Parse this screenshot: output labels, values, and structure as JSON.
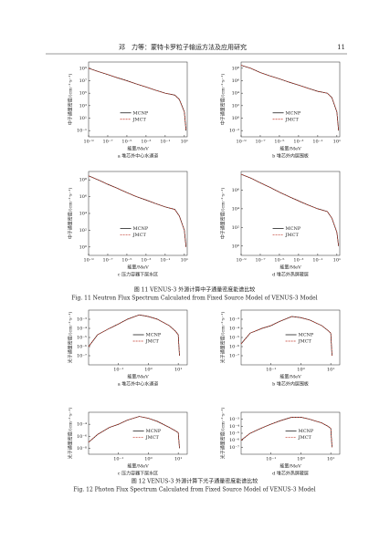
{
  "header": {
    "running_title": "邓　力等：蒙特卡罗粒子输运方法及应用研究",
    "page": "11"
  },
  "figures": [
    {
      "caption_cn": "图 11  VENUS-3 外源计算中子通量密度能谱比较",
      "caption_en": "Fig. 11  Neutron Flux Spectrum Calculated from Fixed Source Model of VENUS-3 Model"
    },
    {
      "caption_cn": "图 12  VENUS-3 外源计算下光子通量密度能谱比较",
      "caption_en": "Fig. 12  Photon Flux Spectrum Calculated from Fixed Source Model of VENUS-3 Model"
    }
  ],
  "chart_data": [
    {
      "type": "line",
      "caption": "a  堆芯外中心水通道",
      "xlabel": "能量/MeV",
      "ylabel": "中子通量密度/(cm⁻²·s⁻¹)",
      "xscale": "log",
      "yscale": "log",
      "legend": "lower center",
      "xlim": [
        1e-09,
        20
      ],
      "ylim": [
        0.01,
        10000000000.0
      ],
      "xticks": [
        {
          "value": 1e-09,
          "label": "10⁻⁹"
        },
        {
          "value": 1e-07,
          "label": "10⁻⁷"
        },
        {
          "value": 1e-05,
          "label": "10⁻⁵"
        },
        {
          "value": 0.001,
          "label": "10⁻³"
        },
        {
          "value": 0.1,
          "label": "10⁻¹"
        },
        {
          "value": 10,
          "label": "10¹"
        }
      ],
      "yticks": [
        {
          "value": 0.1,
          "label": "10⁻¹"
        },
        {
          "value": 10,
          "label": "10¹"
        },
        {
          "value": 1000,
          "label": "10³"
        },
        {
          "value": 100000,
          "label": "10⁵"
        },
        {
          "value": 10000000.0,
          "label": "10⁷"
        },
        {
          "value": 1000000000.0,
          "label": "10⁹"
        }
      ],
      "x": [
        1e-09,
        1e-08,
        1e-07,
        1e-06,
        1e-05,
        0.0001,
        0.001,
        0.01,
        0.1,
        1,
        3,
        10,
        15
      ],
      "series": [
        {
          "name": "MCNP",
          "color": "#000000",
          "values": [
            1000000000.0,
            300000000.0,
            100000000.0,
            30000000.0,
            10000000.0,
            3000000.0,
            1000000.0,
            300000.0,
            100000.0,
            50000.0,
            10000.0,
            100,
            0.1
          ]
        },
        {
          "name": "JMCT",
          "color": "#c0392b",
          "values": [
            1000000000.0,
            300000000.0,
            100000000.0,
            30000000.0,
            10000000.0,
            3000000.0,
            1000000.0,
            300000.0,
            100000.0,
            50000.0,
            10000.0,
            100,
            0.1
          ]
        }
      ]
    },
    {
      "type": "line",
      "caption": "b  堆芯外内层围板",
      "xlabel": "能量/MeV",
      "ylabel": "中子通量密度/(cm⁻²·s⁻¹)",
      "xscale": "log",
      "yscale": "log",
      "legend": "lower center",
      "xlim": [
        1e-09,
        20
      ],
      "ylim": [
        0.001,
        1000000000.0
      ],
      "xticks": [
        {
          "value": 1e-09,
          "label": "10⁻⁹"
        },
        {
          "value": 1e-07,
          "label": "10⁻⁷"
        },
        {
          "value": 1e-05,
          "label": "10⁻⁵"
        },
        {
          "value": 0.001,
          "label": "10⁻³"
        },
        {
          "value": 0.1,
          "label": "10⁻¹"
        },
        {
          "value": 10,
          "label": "10¹"
        }
      ],
      "yticks": [
        {
          "value": 0.01,
          "label": "10⁻²"
        },
        {
          "value": 1,
          "label": "10⁰"
        },
        {
          "value": 100,
          "label": "10²"
        },
        {
          "value": 10000,
          "label": "10⁴"
        },
        {
          "value": 1000000.0,
          "label": "10⁶"
        },
        {
          "value": 100000000.0,
          "label": "10⁸"
        }
      ],
      "x": [
        1e-09,
        1e-08,
        1e-07,
        1e-06,
        1e-05,
        0.0001,
        0.001,
        0.01,
        0.1,
        1,
        3,
        10,
        15
      ],
      "series": [
        {
          "name": "MCNP",
          "color": "#000000",
          "values": [
            300000000.0,
            100000000.0,
            20000000.0,
            6000000.0,
            2000000.0,
            600000.0,
            200000.0,
            60000.0,
            20000.0,
            10000.0,
            2000,
            10,
            0.01
          ]
        },
        {
          "name": "JMCT",
          "color": "#c0392b",
          "values": [
            300000000.0,
            100000000.0,
            20000000.0,
            6000000.0,
            2000000.0,
            600000.0,
            200000.0,
            60000.0,
            20000.0,
            10000.0,
            2000,
            10,
            0.01
          ]
        }
      ]
    },
    {
      "type": "line",
      "caption": "c  压力容器下层水区",
      "xlabel": "能量/MeV",
      "ylabel": "中子通量密度/(cm⁻²·s⁻¹)",
      "xscale": "log",
      "yscale": "log",
      "legend": "lower center",
      "xlim": [
        1e-09,
        20
      ],
      "ylim": [
        0.1,
        1000000000.0
      ],
      "xticks": [
        {
          "value": 1e-09,
          "label": "10⁻⁹"
        },
        {
          "value": 1e-07,
          "label": "10⁻⁷"
        },
        {
          "value": 1e-05,
          "label": "10⁻⁵"
        },
        {
          "value": 0.001,
          "label": "10⁻³"
        },
        {
          "value": 0.1,
          "label": "10⁻¹"
        },
        {
          "value": 10,
          "label": "10¹"
        }
      ],
      "yticks": [
        {
          "value": 1,
          "label": "10⁰"
        },
        {
          "value": 100,
          "label": "10²"
        },
        {
          "value": 10000,
          "label": "10⁴"
        },
        {
          "value": 1000000.0,
          "label": "10⁶"
        },
        {
          "value": 100000000.0,
          "label": "10⁸"
        }
      ],
      "x": [
        1e-09,
        1e-08,
        1e-07,
        1e-06,
        1e-05,
        0.0001,
        0.001,
        0.01,
        0.1,
        1,
        3,
        10,
        15
      ],
      "series": [
        {
          "name": "MCNP",
          "color": "#000000",
          "values": [
            300000000.0,
            100000000.0,
            30000000.0,
            10000000.0,
            3000000.0,
            1000000.0,
            400000.0,
            150000.0,
            60000.0,
            30000.0,
            5000,
            100,
            1
          ]
        },
        {
          "name": "JMCT",
          "color": "#c0392b",
          "values": [
            300000000.0,
            100000000.0,
            30000000.0,
            10000000.0,
            3000000.0,
            1000000.0,
            400000.0,
            150000.0,
            60000.0,
            30000.0,
            5000,
            100,
            1
          ]
        }
      ]
    },
    {
      "type": "line",
      "caption": "d  堆芯外热屏蔽层",
      "xlabel": "能量/MeV",
      "ylabel": "中子通量密度/(cm⁻²·s⁻¹)",
      "xscale": "log",
      "yscale": "log",
      "legend": "lower center",
      "xlim": [
        1e-09,
        20
      ],
      "ylim": [
        0.1,
        100000000.0
      ],
      "xticks": [
        {
          "value": 1e-09,
          "label": "10⁻⁹"
        },
        {
          "value": 1e-07,
          "label": "10⁻⁷"
        },
        {
          "value": 1e-05,
          "label": "10⁻⁵"
        },
        {
          "value": 0.001,
          "label": "10⁻³"
        },
        {
          "value": 0.1,
          "label": "10⁻¹"
        },
        {
          "value": 10,
          "label": "10¹"
        }
      ],
      "yticks": [
        {
          "value": 1,
          "label": "10⁰"
        },
        {
          "value": 100,
          "label": "10²"
        },
        {
          "value": 10000,
          "label": "10⁴"
        },
        {
          "value": 1000000.0,
          "label": "10⁶"
        }
      ],
      "x": [
        1e-09,
        1e-08,
        1e-07,
        1e-06,
        1e-05,
        0.0001,
        0.001,
        0.01,
        0.1,
        1,
        3,
        10,
        15
      ],
      "series": [
        {
          "name": "MCNP",
          "color": "#000000",
          "values": [
            50000000.0,
            20000000.0,
            6000000.0,
            2000000.0,
            600000.0,
            200000.0,
            70000.0,
            25000.0,
            10000.0,
            5000,
            1000,
            30,
            1
          ]
        },
        {
          "name": "JMCT",
          "color": "#c0392b",
          "values": [
            50000000.0,
            20000000.0,
            6000000.0,
            2000000.0,
            600000.0,
            200000.0,
            70000.0,
            25000.0,
            10000.0,
            5000,
            1000,
            30,
            1
          ]
        }
      ]
    },
    {
      "type": "line",
      "caption": "a  堆芯外中心水通道",
      "xlabel": "能量/MeV",
      "ylabel": "光子通量密度/(cm⁻²·s⁻¹)",
      "xscale": "log",
      "yscale": "log",
      "legend": "center",
      "xlim": [
        0.01,
        20
      ],
      "ylim": [
        1e-08,
        0.01
      ],
      "xticks": [
        {
          "value": 0.1,
          "label": "10⁻¹"
        },
        {
          "value": 1,
          "label": "10⁰"
        },
        {
          "value": 10,
          "label": "10¹"
        }
      ],
      "yticks": [
        {
          "value": 1e-07,
          "label": "10⁻⁷"
        },
        {
          "value": 1e-06,
          "label": "10⁻⁶"
        },
        {
          "value": 1e-05,
          "label": "10⁻⁵"
        },
        {
          "value": 0.0001,
          "label": "10⁻⁴"
        },
        {
          "value": 0.001,
          "label": "10⁻³"
        }
      ],
      "x": [
        0.01,
        0.02,
        0.05,
        0.1,
        0.2,
        0.5,
        1,
        2,
        5,
        8,
        10,
        11
      ],
      "series": [
        {
          "name": "MCNP",
          "color": "#000000",
          "values": [
            1e-06,
            2e-05,
            0.0001,
            0.0003,
            0.001,
            0.003,
            0.002,
            0.001,
            0.0002,
            5e-05,
            2e-05,
            1e-07
          ]
        },
        {
          "name": "JMCT",
          "color": "#c0392b",
          "values": [
            1e-06,
            2e-05,
            0.0001,
            0.0003,
            0.001,
            0.003,
            0.002,
            0.001,
            0.0002,
            5e-05,
            2e-05,
            1e-07
          ]
        }
      ]
    },
    {
      "type": "line",
      "caption": "b  堆芯外内层围板",
      "xlabel": "能量/MeV",
      "ylabel": "光子通量密度/(cm⁻²·s⁻¹)",
      "xscale": "log",
      "yscale": "log",
      "legend": "center",
      "xlim": [
        0.01,
        20
      ],
      "ylim": [
        1e-08,
        0.01
      ],
      "xticks": [
        {
          "value": 0.1,
          "label": "10⁻¹"
        },
        {
          "value": 1,
          "label": "10⁰"
        },
        {
          "value": 10,
          "label": "10¹"
        }
      ],
      "yticks": [
        {
          "value": 1e-07,
          "label": "10⁻⁷"
        },
        {
          "value": 1e-06,
          "label": "10⁻⁶"
        },
        {
          "value": 1e-05,
          "label": "10⁻⁵"
        },
        {
          "value": 0.0001,
          "label": "10⁻⁴"
        },
        {
          "value": 0.001,
          "label": "10⁻³"
        }
      ],
      "x": [
        0.01,
        0.02,
        0.05,
        0.1,
        0.2,
        0.5,
        1,
        2,
        5,
        8,
        10,
        11
      ],
      "series": [
        {
          "name": "MCNP",
          "color": "#000000",
          "values": [
            2e-06,
            3e-05,
            0.0001,
            0.0002,
            0.0006,
            0.002,
            0.0015,
            0.0008,
            0.0002,
            6e-05,
            3e-05,
            1e-07
          ]
        },
        {
          "name": "JMCT",
          "color": "#c0392b",
          "values": [
            2e-06,
            3e-05,
            0.0001,
            0.0002,
            0.0006,
            0.002,
            0.0015,
            0.0008,
            0.0002,
            6e-05,
            3e-05,
            1e-07
          ]
        }
      ]
    },
    {
      "type": "line",
      "caption": "c  压力容器下层水区",
      "xlabel": "能量/MeV",
      "ylabel": "光子通量密度/(cm⁻²·s⁻¹)",
      "xscale": "log",
      "yscale": "log",
      "legend": "center",
      "xlim": [
        0.01,
        20
      ],
      "ylim": [
        1e-09,
        0.01
      ],
      "xticks": [
        {
          "value": 0.1,
          "label": "10⁻¹"
        },
        {
          "value": 1,
          "label": "10⁰"
        },
        {
          "value": 10,
          "label": "10¹"
        }
      ],
      "yticks": [
        {
          "value": 1e-08,
          "label": "10⁻⁸"
        },
        {
          "value": 1e-06,
          "label": "10⁻⁶"
        },
        {
          "value": 0.0001,
          "label": "10⁻⁴"
        }
      ],
      "x": [
        0.01,
        0.02,
        0.05,
        0.1,
        0.2,
        0.5,
        1,
        2,
        5,
        8,
        10,
        11
      ],
      "series": [
        {
          "name": "MCNP",
          "color": "#000000",
          "values": [
            1e-07,
            2e-06,
            3e-05,
            0.0001,
            0.0005,
            0.002,
            0.001,
            0.0003,
            3e-05,
            8e-06,
            4e-06,
            1e-08
          ]
        },
        {
          "name": "JMCT",
          "color": "#c0392b",
          "values": [
            1e-07,
            2e-06,
            3e-05,
            0.0001,
            0.0005,
            0.002,
            0.001,
            0.0003,
            3e-05,
            8e-06,
            4e-06,
            1e-08
          ]
        }
      ]
    },
    {
      "type": "line",
      "caption": "d  堆芯外热屏蔽层",
      "xlabel": "能量/MeV",
      "ylabel": "光子通量密度/(cm⁻²·s⁻¹)",
      "xscale": "log",
      "yscale": "log",
      "legend": "center",
      "xlim": [
        0.01,
        20
      ],
      "ylim": [
        1e-08,
        0.01
      ],
      "xticks": [
        {
          "value": 0.1,
          "label": "10⁻¹"
        },
        {
          "value": 1,
          "label": "10⁰"
        },
        {
          "value": 10,
          "label": "10¹"
        }
      ],
      "yticks": [
        {
          "value": 1e-07,
          "label": "10⁻⁷"
        },
        {
          "value": 1e-06,
          "label": "10⁻⁶"
        },
        {
          "value": 1e-05,
          "label": "10⁻⁵"
        },
        {
          "value": 0.0001,
          "label": "10⁻⁴"
        },
        {
          "value": 0.001,
          "label": "10⁻³"
        }
      ],
      "x": [
        0.01,
        0.02,
        0.05,
        0.1,
        0.2,
        0.5,
        1,
        2,
        5,
        8,
        10,
        11
      ],
      "series": [
        {
          "name": "MCNP",
          "color": "#000000",
          "values": [
            1e-06,
            1e-05,
            6e-05,
            0.0002,
            0.0006,
            0.002,
            0.002,
            0.001,
            0.0003,
            0.0001,
            5e-05,
            1e-07
          ]
        },
        {
          "name": "JMCT",
          "color": "#c0392b",
          "values": [
            1e-06,
            1e-05,
            6e-05,
            0.0002,
            0.0006,
            0.002,
            0.002,
            0.001,
            0.0003,
            0.0001,
            5e-05,
            1e-07
          ]
        }
      ]
    }
  ]
}
